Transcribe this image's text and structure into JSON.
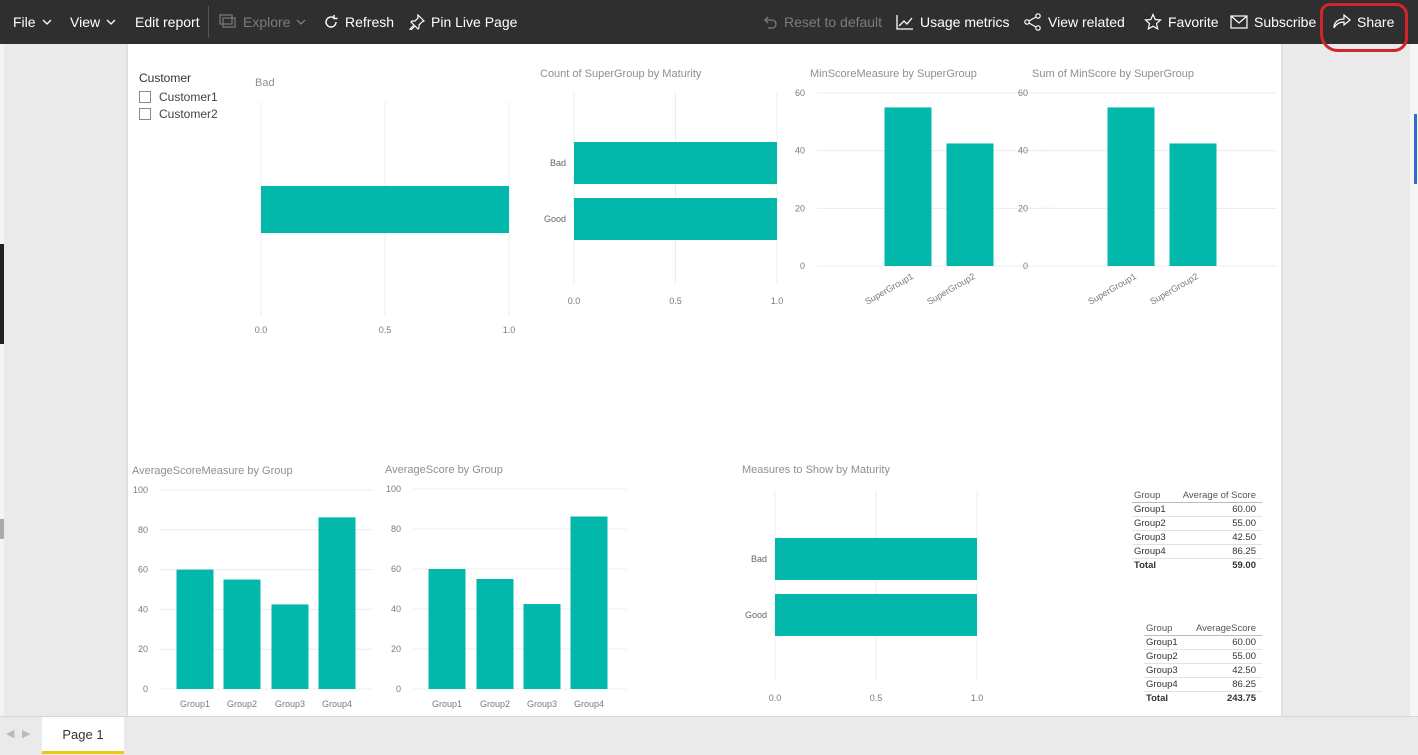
{
  "toolbar": {
    "file": "File",
    "view": "View",
    "edit_report": "Edit report",
    "explore": "Explore",
    "refresh": "Refresh",
    "pin_live_page": "Pin Live Page",
    "reset_to_default": "Reset to default",
    "usage_metrics": "Usage metrics",
    "view_related": "View related",
    "favorite": "Favorite",
    "subscribe": "Subscribe",
    "share": "Share",
    "highlight_color": "#d3262c"
  },
  "slicer": {
    "title": "Customer",
    "items": [
      "Customer1",
      "Customer2"
    ]
  },
  "visuals": {
    "bad_title": "Bad",
    "count_title": "Count of SuperGroup by Maturity",
    "minscore_measure_title": "MinScoreMeasure by SuperGroup",
    "sum_minscore_title": "Sum of MinScore by SuperGroup",
    "avg_measure_title": "AverageScoreMeasure by Group",
    "avg_score_title": "AverageScore by Group",
    "measures_title": "Measures to Show by Maturity"
  },
  "chart_data": [
    {
      "type": "bar",
      "orientation": "horizontal",
      "title": "Bad",
      "categories": [
        ""
      ],
      "values": [
        1.0
      ],
      "xlim": [
        0,
        1
      ],
      "xticks": [
        "0.0",
        "0.5",
        "1.0"
      ],
      "color": "#01b8aa"
    },
    {
      "type": "bar",
      "orientation": "horizontal",
      "title": "Count of SuperGroup by Maturity",
      "categories": [
        "Bad",
        "Good"
      ],
      "values": [
        1.0,
        1.0
      ],
      "xlim": [
        0,
        1
      ],
      "xticks": [
        "0.0",
        "0.5",
        "1.0"
      ],
      "color": "#01b8aa"
    },
    {
      "type": "bar",
      "title": "MinScoreMeasure by SuperGroup",
      "categories": [
        "SuperGroup1",
        "SuperGroup2"
      ],
      "values": [
        55,
        42.5
      ],
      "ylim": [
        0,
        60
      ],
      "yticks": [
        "0",
        "20",
        "40",
        "60"
      ],
      "color": "#01b8aa"
    },
    {
      "type": "bar",
      "title": "Sum of MinScore by SuperGroup",
      "categories": [
        "SuperGroup1",
        "SuperGroup2"
      ],
      "values": [
        55,
        42.5
      ],
      "ylim": [
        0,
        60
      ],
      "yticks": [
        "0",
        "20",
        "40",
        "60"
      ],
      "color": "#01b8aa"
    },
    {
      "type": "bar",
      "title": "AverageScoreMeasure by Group",
      "categories": [
        "Group1",
        "Group2",
        "Group3",
        "Group4"
      ],
      "values": [
        60,
        55,
        42.5,
        86.25
      ],
      "ylim": [
        0,
        100
      ],
      "yticks": [
        "0",
        "20",
        "40",
        "60",
        "80",
        "100"
      ],
      "color": "#01b8aa"
    },
    {
      "type": "bar",
      "title": "AverageScore by Group",
      "categories": [
        "Group1",
        "Group2",
        "Group3",
        "Group4"
      ],
      "values": [
        60,
        55,
        42.5,
        86.25
      ],
      "ylim": [
        0,
        100
      ],
      "yticks": [
        "0",
        "20",
        "40",
        "60",
        "80",
        "100"
      ],
      "color": "#01b8aa"
    },
    {
      "type": "bar",
      "orientation": "horizontal",
      "title": "Measures to Show by Maturity",
      "categories": [
        "Bad",
        "Good"
      ],
      "values": [
        1.0,
        1.0
      ],
      "xlim": [
        0,
        1
      ],
      "xticks": [
        "0.0",
        "0.5",
        "1.0"
      ],
      "color": "#01b8aa"
    },
    {
      "type": "table",
      "columns": [
        "Group",
        "Average of Score"
      ],
      "rows": [
        [
          "Group1",
          "60.00"
        ],
        [
          "Group2",
          "55.00"
        ],
        [
          "Group3",
          "42.50"
        ],
        [
          "Group4",
          "86.25"
        ]
      ],
      "total": [
        "Total",
        "59.00"
      ]
    },
    {
      "type": "table",
      "columns": [
        "Group",
        "AverageScore"
      ],
      "rows": [
        [
          "Group1",
          "60.00"
        ],
        [
          "Group2",
          "55.00"
        ],
        [
          "Group3",
          "42.50"
        ],
        [
          "Group4",
          "86.25"
        ]
      ],
      "total": [
        "Total",
        "243.75"
      ]
    }
  ],
  "tabs": {
    "page1": "Page 1"
  }
}
